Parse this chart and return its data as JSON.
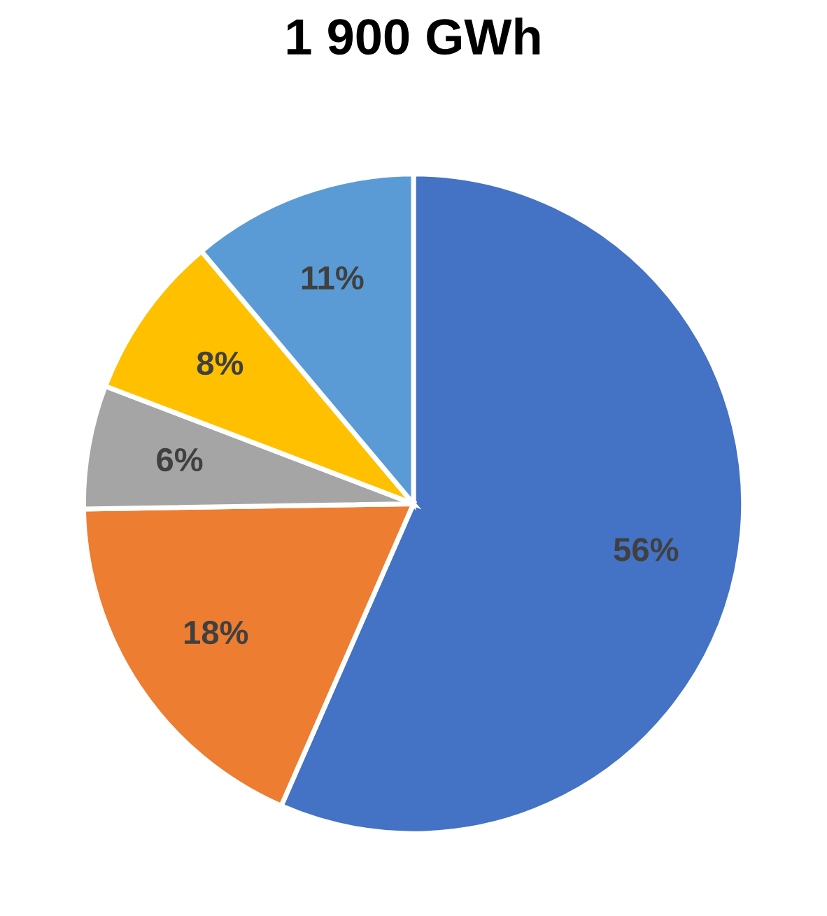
{
  "chart_data": {
    "type": "pie",
    "title": "1 900 GWh",
    "categories": [
      null,
      null,
      null,
      null,
      null
    ],
    "values": [
      56,
      18,
      6,
      8,
      11
    ],
    "colors": [
      "#4472c4",
      "#ed7d31",
      "#a5a5a5",
      "#ffc000",
      "#5b9bd5"
    ],
    "value_labels": [
      "56%",
      "18%",
      "6%",
      "8%",
      "11%"
    ]
  }
}
